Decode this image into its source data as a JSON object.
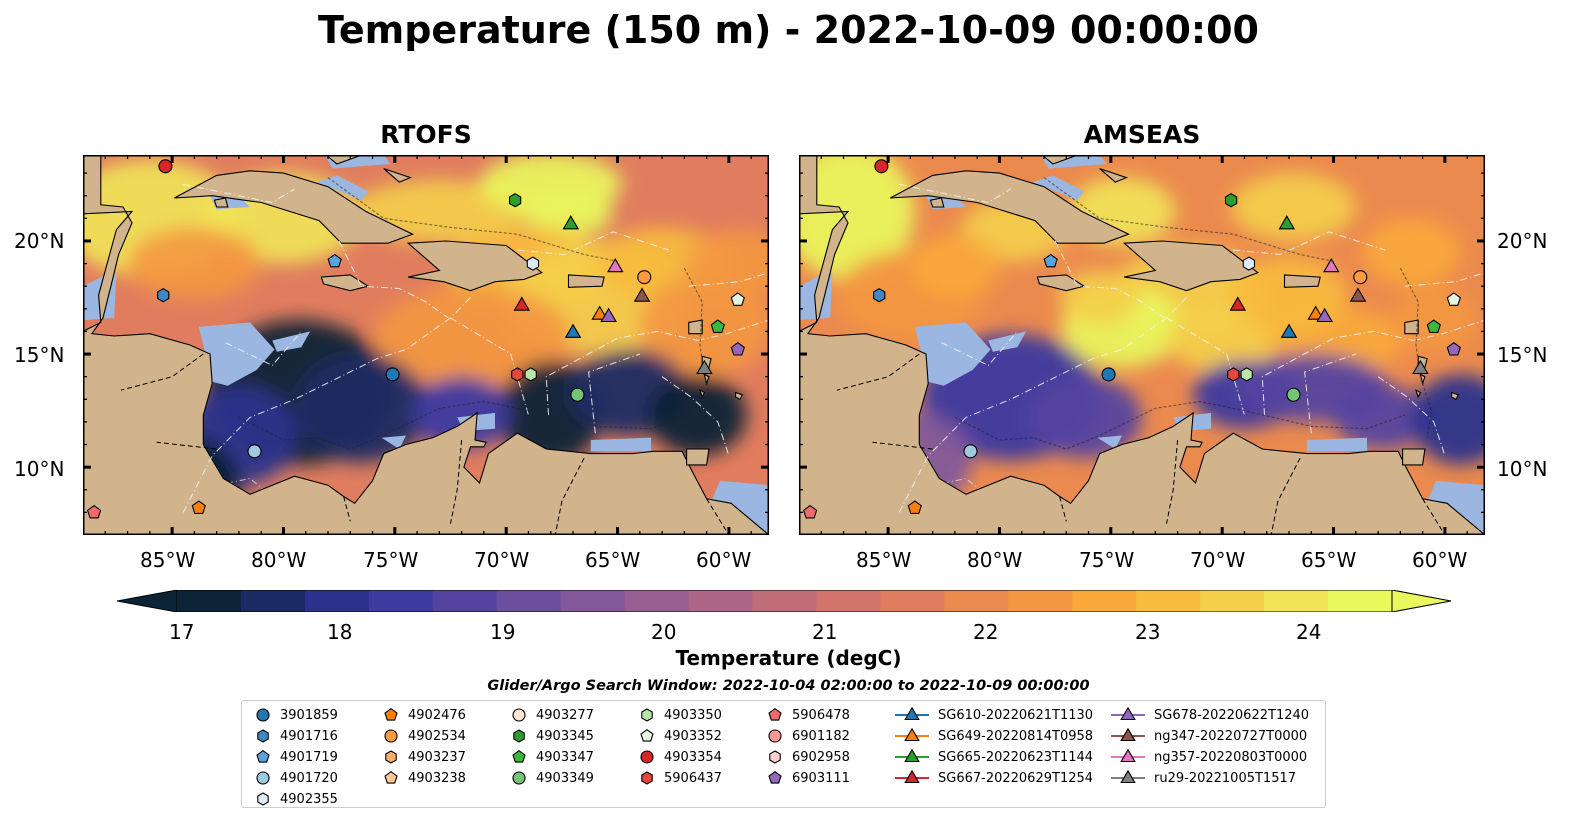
{
  "title": "Temperature (150 m) - 2022-10-09 00:00:00",
  "panels": [
    {
      "title": "RTOFS"
    },
    {
      "title": "AMSEAS"
    }
  ],
  "axes": {
    "x_ticks": [
      "85°W",
      "80°W",
      "75°W",
      "70°W",
      "65°W",
      "60°W"
    ],
    "y_ticks": [
      "20°N",
      "15°N",
      "10°N"
    ],
    "lon_range": [
      -89,
      -58.2
    ],
    "lat_range": [
      7,
      23.8
    ]
  },
  "colorbar": {
    "label": "Temperature (degC)",
    "ticks": [
      "17",
      "18",
      "19",
      "20",
      "21",
      "22",
      "23",
      "24"
    ],
    "range": [
      16.75,
      24.5
    ],
    "colors": [
      "#0d2437",
      "#1c2a63",
      "#2b318c",
      "#3d3aa0",
      "#5443a0",
      "#6b4e9e",
      "#82589a",
      "#985f92",
      "#ad6686",
      "#c06d7a",
      "#d2746c",
      "#e07d5e",
      "#eb8a4e",
      "#f39841",
      "#f8a93a",
      "#f8bb3e",
      "#f4cf4a",
      "#f1e557",
      "#e9f85c"
    ]
  },
  "colors": {
    "land": "#d2b48c",
    "shallow": "#9bb6e0"
  },
  "search_window": "Glider/Argo Search Window: 2022-10-04 02:00:00 to 2022-10-09 00:00:00",
  "legend": [
    {
      "label": "3901859",
      "marker": "circle",
      "color": "#1f77b4"
    },
    {
      "label": "4901716",
      "marker": "hexagon",
      "color": "#3f88c5"
    },
    {
      "label": "4901719",
      "marker": "pentagon",
      "color": "#5aa3dc"
    },
    {
      "label": "4901720",
      "marker": "circle",
      "color": "#9ecae1"
    },
    {
      "label": "4902355",
      "marker": "hexagon",
      "color": "#deebf7"
    },
    {
      "label": "4902476",
      "marker": "pentagon",
      "color": "#ff7f0e"
    },
    {
      "label": "4902534",
      "marker": "circle",
      "color": "#fd9a42"
    },
    {
      "label": "4903237",
      "marker": "hexagon",
      "color": "#fdae6b"
    },
    {
      "label": "4903238",
      "marker": "pentagon",
      "color": "#fdc895"
    },
    {
      "label": "4903277",
      "marker": "circle",
      "color": "#fde5cf"
    },
    {
      "label": "4903345",
      "marker": "hexagon",
      "color": "#2ca02c"
    },
    {
      "label": "4903347",
      "marker": "pentagon",
      "color": "#3cb83c"
    },
    {
      "label": "4903349",
      "marker": "circle",
      "color": "#74c476"
    },
    {
      "label": "4903350",
      "marker": "hexagon",
      "color": "#b8e6a8"
    },
    {
      "label": "4903352",
      "marker": "pentagon",
      "color": "#e5f5e0"
    },
    {
      "label": "4903354",
      "marker": "circle",
      "color": "#d62728"
    },
    {
      "label": "5906437",
      "marker": "hexagon",
      "color": "#e6473d"
    },
    {
      "label": "5906478",
      "marker": "pentagon",
      "color": "#f06a6a"
    },
    {
      "label": "6901182",
      "marker": "circle",
      "color": "#ff9896"
    },
    {
      "label": "6902958",
      "marker": "hexagon",
      "color": "#fdd0cf"
    },
    {
      "label": "6903111",
      "marker": "pentagon",
      "color": "#9467bd"
    },
    {
      "label": "SG610-20220621T1130",
      "marker": "triangle-line",
      "color": "#1f77b4"
    },
    {
      "label": "SG649-20220814T0958",
      "marker": "triangle-line",
      "color": "#ff7f0e"
    },
    {
      "label": "SG665-20220623T1144",
      "marker": "triangle-line",
      "color": "#2ca02c"
    },
    {
      "label": "SG667-20220629T1254",
      "marker": "triangle-line",
      "color": "#d62728"
    },
    {
      "label": "SG678-20220622T1240",
      "marker": "triangle-line",
      "color": "#9467bd"
    },
    {
      "label": "ng347-20220727T0000",
      "marker": "triangle-line",
      "color": "#8c564b"
    },
    {
      "label": "ng357-20220803T0000",
      "marker": "triangle-line",
      "color": "#e377c2"
    },
    {
      "label": "ru29-20221005T1517",
      "marker": "triangle-line",
      "color": "#7f7f7f"
    }
  ],
  "platforms": [
    {
      "id": "4903354",
      "lon": -85.3,
      "lat": 23.3
    },
    {
      "id": "4903345",
      "lon": -69.6,
      "lat": 21.8
    },
    {
      "id": "SG665-20220623T1144",
      "lon": -67.1,
      "lat": 20.8
    },
    {
      "id": "4901719",
      "lon": -77.7,
      "lat": 19.1
    },
    {
      "id": "4902355",
      "lon": -68.8,
      "lat": 19.0
    },
    {
      "id": "ng357-20220803T0000",
      "lon": -65.1,
      "lat": 18.9
    },
    {
      "id": "4902534",
      "lon": -63.8,
      "lat": 18.4
    },
    {
      "id": "ng347-20220727T0000",
      "lon": -63.9,
      "lat": 17.6
    },
    {
      "id": "4901716",
      "lon": -85.4,
      "lat": 17.6
    },
    {
      "id": "4903352",
      "lon": -59.6,
      "lat": 17.4
    },
    {
      "id": "SG667-20220629T1254",
      "lon": -69.3,
      "lat": 17.2
    },
    {
      "id": "SG649-20220814T0958",
      "lon": -65.8,
      "lat": 16.8
    },
    {
      "id": "SG678-20220622T1240",
      "lon": -65.4,
      "lat": 16.7
    },
    {
      "id": "4903347",
      "lon": -60.5,
      "lat": 16.2
    },
    {
      "id": "SG610-20220621T1130",
      "lon": -67.0,
      "lat": 16.0
    },
    {
      "id": "6903111",
      "lon": -59.6,
      "lat": 15.2
    },
    {
      "id": "ru29-20221005T1517",
      "lon": -61.1,
      "lat": 14.4
    },
    {
      "id": "3901859",
      "lon": -75.1,
      "lat": 14.1
    },
    {
      "id": "5906437",
      "lon": -69.5,
      "lat": 14.1
    },
    {
      "id": "4903350",
      "lon": -68.9,
      "lat": 14.1
    },
    {
      "id": "4903349",
      "lon": -66.8,
      "lat": 13.2
    },
    {
      "id": "4901720",
      "lon": -81.3,
      "lat": 10.7
    },
    {
      "id": "4902476",
      "lon": -83.8,
      "lat": 8.2
    },
    {
      "id": "5906478",
      "lon": -88.5,
      "lat": 8.0
    }
  ]
}
